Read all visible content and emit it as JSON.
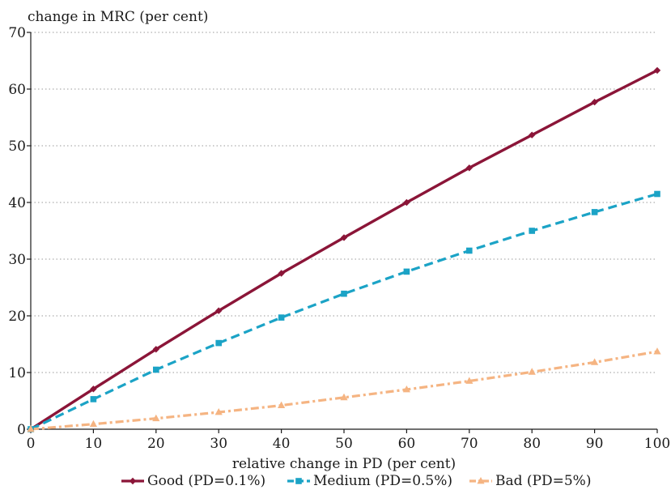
{
  "chart_data": {
    "type": "line",
    "title": "",
    "ylabel": "change in MRC (per cent)",
    "xlabel": "relative change in PD (per cent)",
    "xlim": [
      0,
      100
    ],
    "ylim": [
      0,
      70
    ],
    "x_ticks": [
      0,
      10,
      20,
      30,
      40,
      50,
      60,
      70,
      80,
      90,
      100
    ],
    "y_ticks": [
      0,
      10,
      20,
      30,
      40,
      50,
      60,
      70
    ],
    "grid": "horizontal-dotted",
    "legend_position": "bottom",
    "x": [
      0,
      10,
      20,
      30,
      40,
      50,
      60,
      70,
      80,
      90,
      100
    ],
    "series": [
      {
        "name": "Good (PD=0.1%)",
        "color": "#8b1538",
        "line_style": "solid",
        "marker": "diamond",
        "values": [
          0,
          7.1,
          14.1,
          20.9,
          27.5,
          33.8,
          40.0,
          46.1,
          51.9,
          57.7,
          63.3
        ]
      },
      {
        "name": "Medium (PD=0.5%)",
        "color": "#1ba3c6",
        "line_style": "dashed",
        "marker": "square",
        "values": [
          0,
          5.3,
          10.5,
          15.2,
          19.7,
          23.9,
          27.8,
          31.5,
          35.0,
          38.3,
          41.5
        ]
      },
      {
        "name": "Bad (PD=5%)",
        "color": "#f5b482",
        "line_style": "dashdot",
        "marker": "triangle",
        "values": [
          0,
          0.9,
          1.9,
          3.0,
          4.2,
          5.6,
          7.0,
          8.5,
          10.1,
          11.8,
          13.7
        ]
      }
    ]
  }
}
